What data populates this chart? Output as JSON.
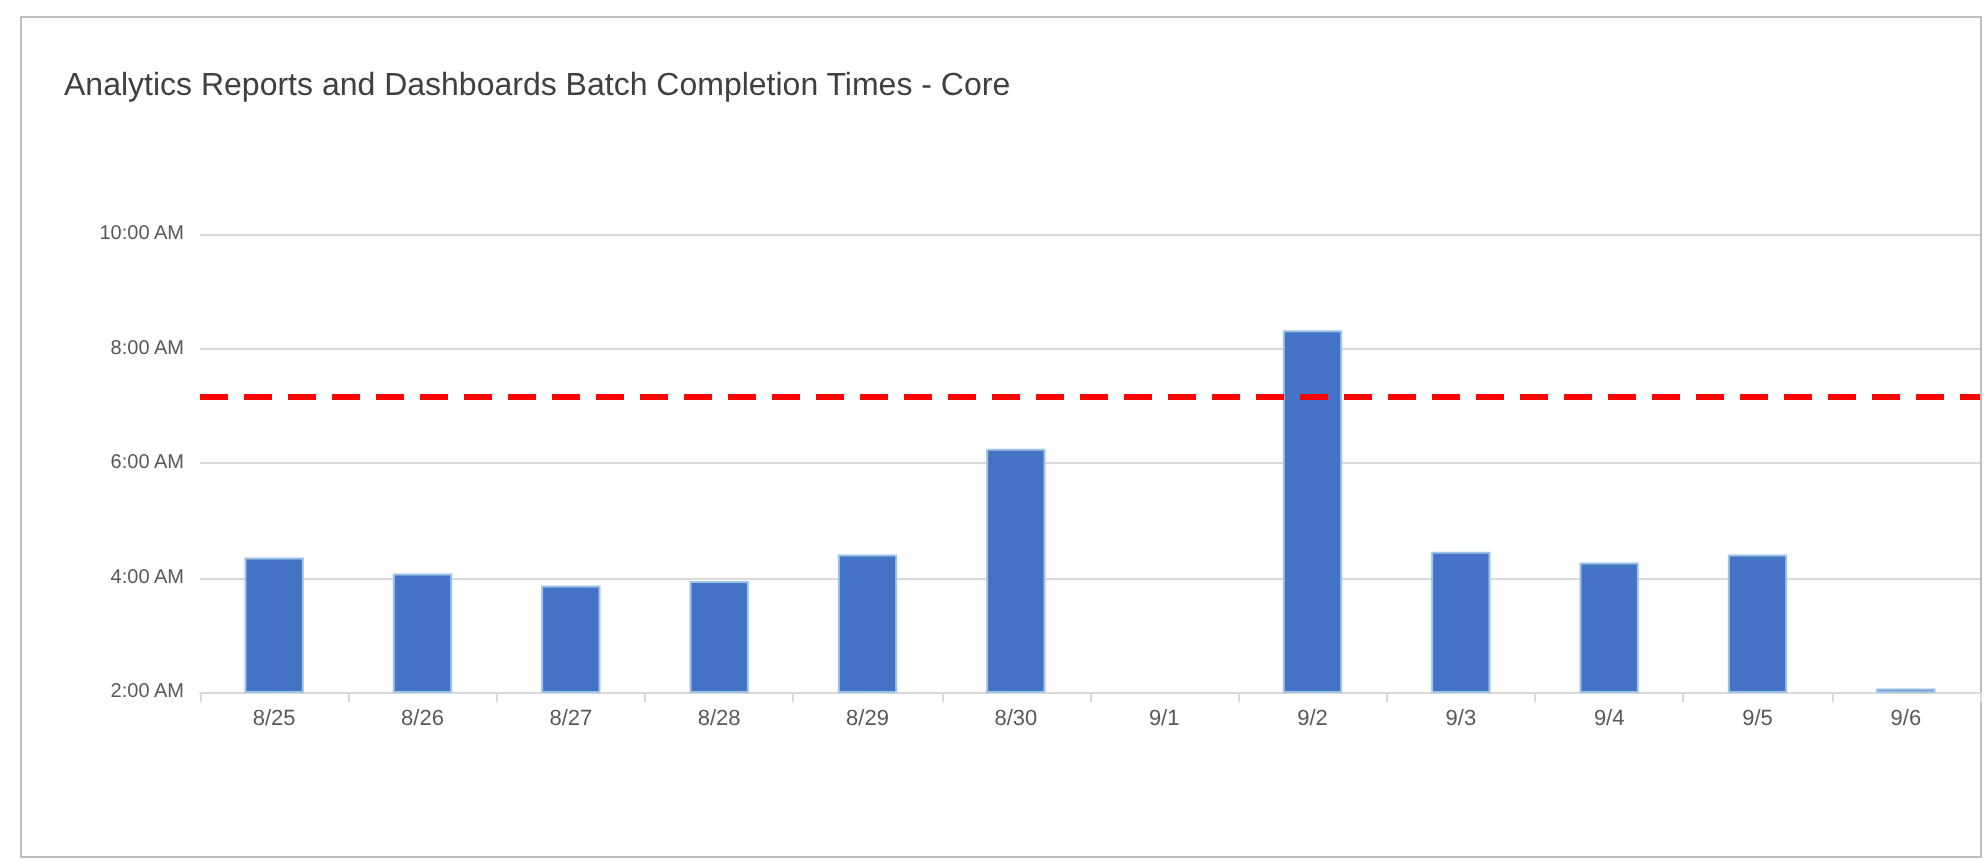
{
  "chart_data": {
    "type": "bar",
    "title": "Analytics Reports and Dashboards Batch Completion Times - Core",
    "categories": [
      "8/25",
      "8/26",
      "8/27",
      "8/28",
      "8/29",
      "8/30",
      "9/1",
      "9/2",
      "9/3",
      "9/4",
      "9/5",
      "9/6"
    ],
    "values": [
      4.35,
      4.07,
      3.86,
      3.94,
      4.4,
      6.25,
      null,
      8.32,
      4.45,
      4.26,
      4.4,
      2.06
    ],
    "color": "#4472c4",
    "ylim": [
      2,
      10
    ],
    "yticks": [
      {
        "value": 2,
        "label": "2:00 AM"
      },
      {
        "value": 4,
        "label": "4:00 AM"
      },
      {
        "value": 6,
        "label": "6:00 AM"
      },
      {
        "value": 8,
        "label": "8:00 AM"
      },
      {
        "value": 10,
        "label": "10:00 AM"
      }
    ],
    "ref_lines": [
      {
        "axis": "y",
        "value": 7.15,
        "color": "#ff0000",
        "line_style": "dashed"
      }
    ],
    "grid": "y"
  }
}
